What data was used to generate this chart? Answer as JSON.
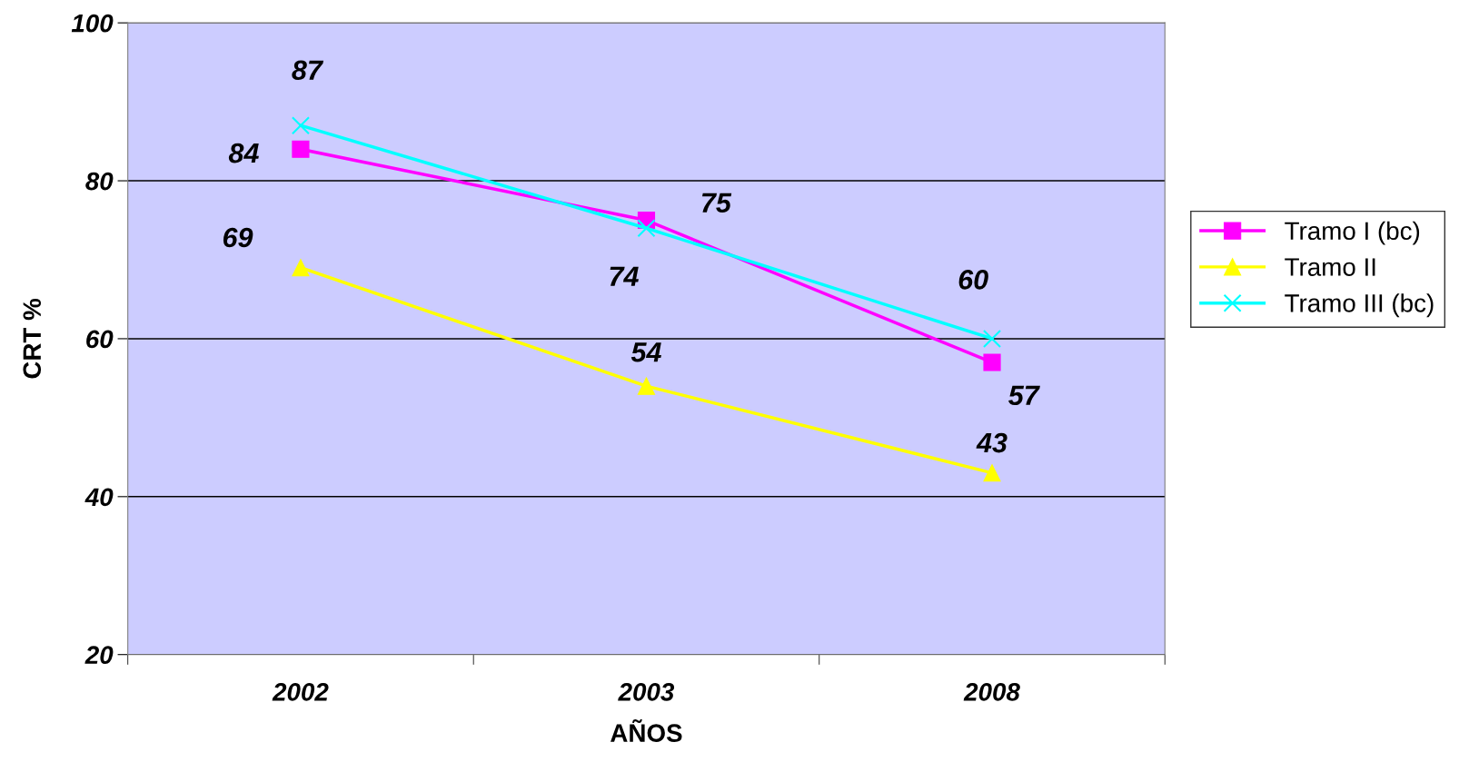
{
  "chart_data": {
    "type": "line",
    "xlabel": "AÑOS",
    "ylabel": "CRT %",
    "categories": [
      "2002",
      "2003",
      "2008"
    ],
    "series": [
      {
        "name": "Tramo I (bc)",
        "color": "#ff00ff",
        "marker": "square",
        "values": [
          84,
          75,
          57
        ]
      },
      {
        "name": "Tramo II",
        "color": "#ffff00",
        "marker": "triangle",
        "values": [
          69,
          54,
          43
        ]
      },
      {
        "name": "Tramo III (bc)",
        "color": "#00ffff",
        "marker": "cross",
        "values": [
          87,
          74,
          60
        ]
      }
    ],
    "ylim": [
      20,
      100
    ],
    "yticks": [
      20,
      40,
      60,
      80,
      100
    ],
    "grid": "y",
    "legend": "right",
    "data_labels": true
  }
}
